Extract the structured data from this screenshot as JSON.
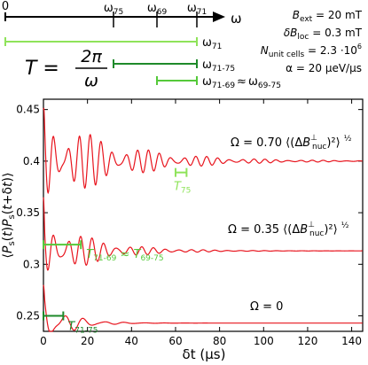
{
  "colors": {
    "axis": "#000000",
    "curve": "#e8141d",
    "light_green": "#8fe35a",
    "dark_green": "#1e8a2a",
    "mid_green": "#55c93a"
  },
  "top_panel": {
    "axis_symbol": "ω",
    "zero_label": "0",
    "frequency_ticks": [
      {
        "label": "ω75",
        "base": "ω",
        "sub": "75"
      },
      {
        "label": "ω69",
        "base": "ω",
        "sub": "69"
      },
      {
        "label": "ω71",
        "base": "ω",
        "sub": "71"
      }
    ],
    "period_formula": {
      "lhs": "T =",
      "numerator": "2π",
      "denominator": "ω"
    },
    "intervals": [
      {
        "label": "ω71",
        "base": "ω",
        "sub": "71",
        "color": "light_green"
      },
      {
        "label": "ω71-75",
        "base": "ω",
        "sub": "71-75",
        "color": "dark_green"
      },
      {
        "label": "ω71-69 ≈ ω69-75",
        "base": "ω",
        "sub": "71-69",
        "approx": "≈",
        "base2": "ω",
        "sub2": "69-75",
        "color": "mid_green"
      }
    ],
    "parameters": [
      {
        "label": "Bext = 20 mT",
        "main": "B",
        "sub": "ext",
        "rest": " = 20 mT"
      },
      {
        "label": "δBloc = 0.3 mT",
        "main": "δB",
        "sub": "loc",
        "rest": " = 0.3 mT"
      },
      {
        "label": "Nunit cells = 2.3 ·10^6",
        "main": "N",
        "sub": "unit cells",
        "rest": " = 2.3 ·10",
        "sup": "6"
      },
      {
        "label": "α = 20 μeV/μs",
        "main": "α = 20 μeV/μs"
      }
    ]
  },
  "chart_data": {
    "type": "line",
    "xlabel": "δt (μs)",
    "ylabel": "⟨P_s(t)P_s(t+δt)⟩",
    "xlim": [
      0,
      145
    ],
    "ylim": [
      0.235,
      0.46
    ],
    "x_ticks": [
      0,
      20,
      40,
      60,
      80,
      100,
      120,
      140
    ],
    "y_ticks": [
      0.25,
      0.3,
      0.35,
      0.4,
      0.45
    ],
    "y_tick_labels": [
      "0.25",
      "0.3",
      "0.35",
      "0.4",
      "0.45"
    ],
    "series": [
      {
        "label": "Ω = 0.70 ⟨(ΔB⊥nuc)²⟩½",
        "omega": "0.70",
        "start": 0.45,
        "asymptote": 0.4
      },
      {
        "label": "Ω = 0.35 ⟨(ΔB⊥nuc)²⟩½",
        "omega": "0.35",
        "start": 0.365,
        "asymptote": 0.313
      },
      {
        "label": "Ω = 0",
        "omega": "0",
        "start": 0.28,
        "asymptote": 0.243
      }
    ],
    "annotations": [
      {
        "label": "T75",
        "base": "T",
        "sub": "75",
        "x_range": [
          60,
          65
        ],
        "y": 0.389,
        "color": "light_green"
      },
      {
        "label": "T71-69 ≈ T69-75",
        "base": "T",
        "sub": "71-69",
        "approx": "≈",
        "base2": "T",
        "sub2": "69-75",
        "x_range": [
          0,
          17
        ],
        "y": 0.319,
        "color": "mid_green"
      },
      {
        "label": "T71-75",
        "base": "T",
        "sub": "71-75",
        "x_range": [
          0,
          9
        ],
        "y": 0.25,
        "color": "dark_green"
      }
    ],
    "grid": false,
    "legend": "none"
  }
}
